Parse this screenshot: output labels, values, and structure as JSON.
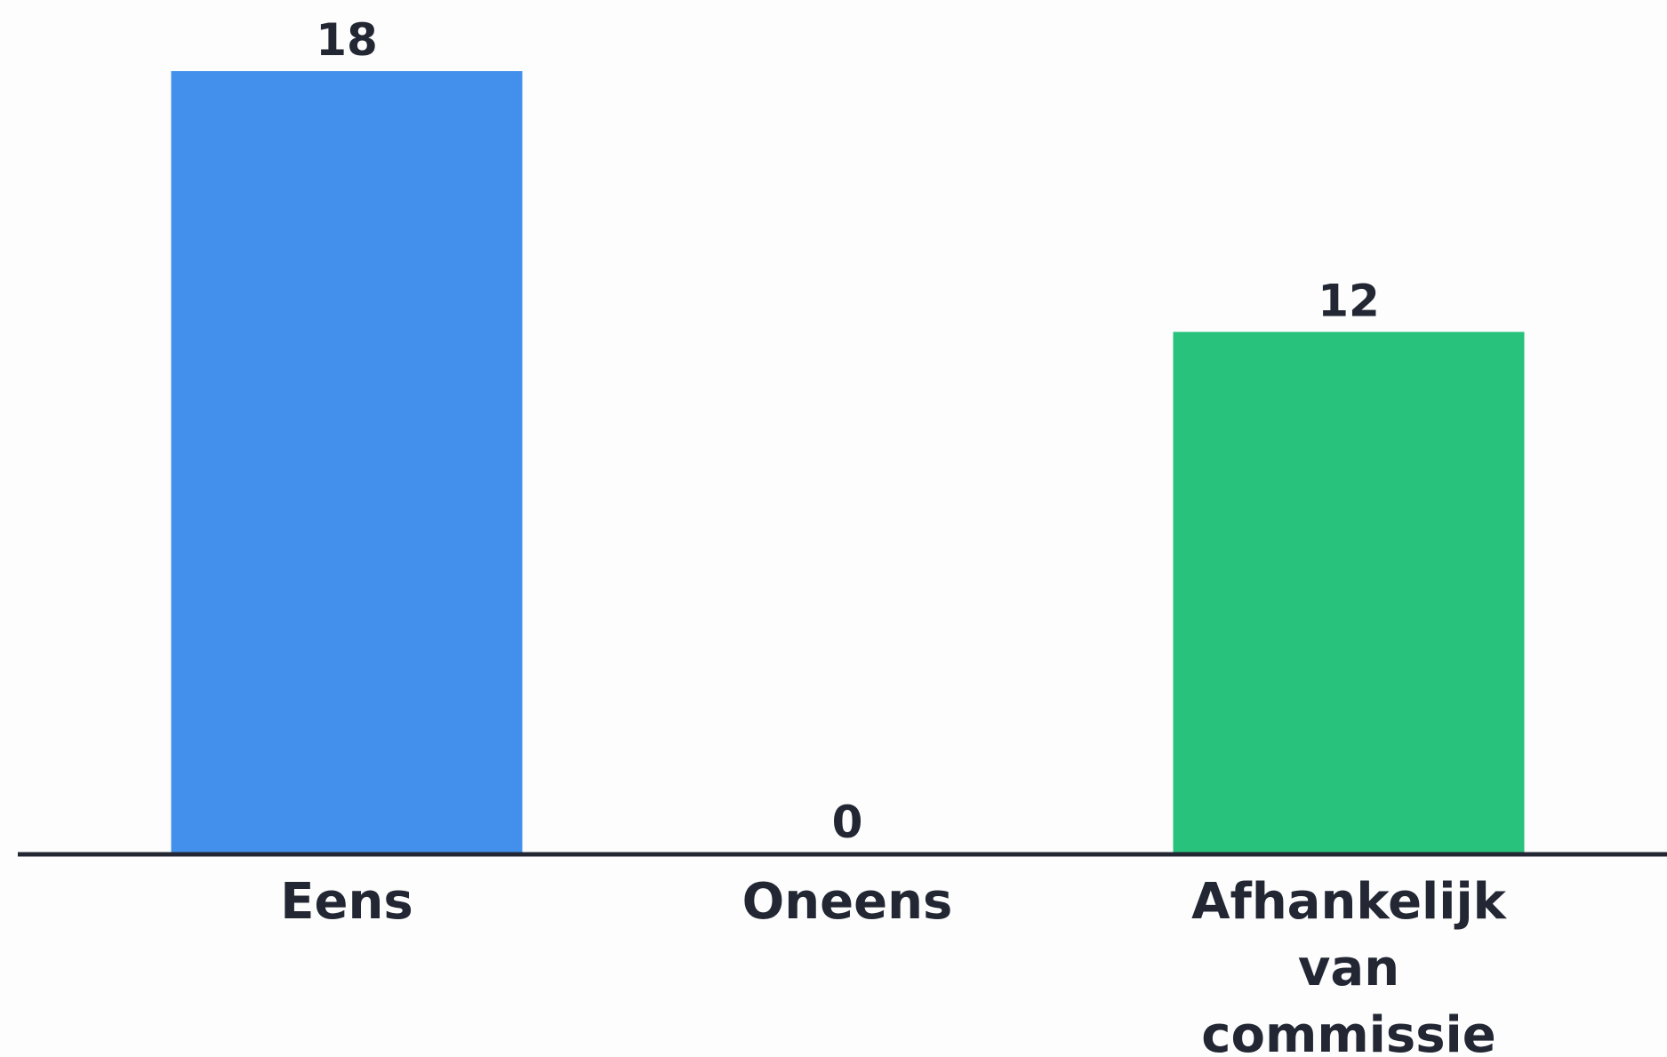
{
  "chart_data": {
    "type": "bar",
    "categories": [
      [
        "Eens"
      ],
      [
        "Oneens"
      ],
      [
        "Afhankelijk",
        "van",
        "commissie"
      ]
    ],
    "values": [
      18,
      0,
      12
    ],
    "data_labels": [
      "18",
      "0",
      "12"
    ],
    "colors": [
      "#4290EC",
      "#4290EC",
      "#28C27D"
    ],
    "axis_color": "#222733",
    "grid": false,
    "legend": "none",
    "ylim": [
      0,
      18
    ]
  }
}
